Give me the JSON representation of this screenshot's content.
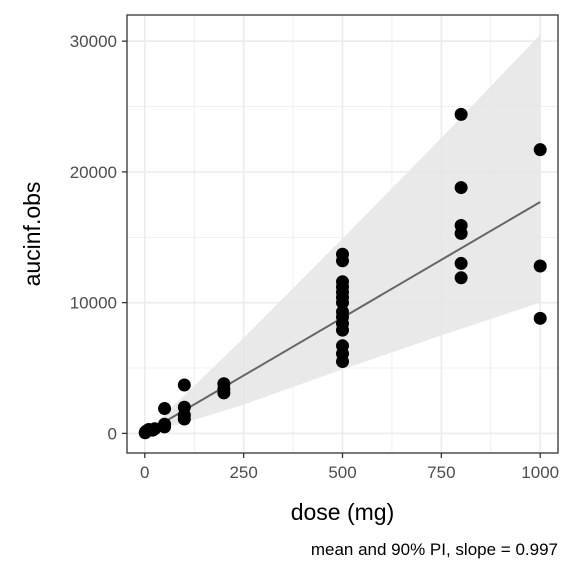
{
  "chart_data": {
    "type": "scatter",
    "xlabel": "dose (mg)",
    "ylabel": "aucinf.obs",
    "caption": "mean and 90% PI, slope = 0.997",
    "xlim": [
      -45,
      1045
    ],
    "ylim": [
      -1500,
      32000
    ],
    "x_ticks": [
      0,
      250,
      500,
      750,
      1000
    ],
    "x_tick_labels": [
      "0",
      "250",
      "500",
      "750",
      "1000"
    ],
    "y_ticks": [
      0,
      10000,
      20000,
      30000
    ],
    "y_tick_labels": [
      "0",
      "10000",
      "20000",
      "30000"
    ],
    "grid": true,
    "points": [
      {
        "x": 1,
        "y": 50
      },
      {
        "x": 2,
        "y": 120
      },
      {
        "x": 5,
        "y": 200
      },
      {
        "x": 10,
        "y": 300
      },
      {
        "x": 20,
        "y": 250
      },
      {
        "x": 25,
        "y": 350
      },
      {
        "x": 50,
        "y": 500
      },
      {
        "x": 50,
        "y": 700
      },
      {
        "x": 50,
        "y": 1900
      },
      {
        "x": 100,
        "y": 1100
      },
      {
        "x": 100,
        "y": 1400
      },
      {
        "x": 100,
        "y": 2000
      },
      {
        "x": 100,
        "y": 3700
      },
      {
        "x": 200,
        "y": 3100
      },
      {
        "x": 200,
        "y": 3400
      },
      {
        "x": 200,
        "y": 3800
      },
      {
        "x": 500,
        "y": 5500
      },
      {
        "x": 500,
        "y": 6100
      },
      {
        "x": 500,
        "y": 6700
      },
      {
        "x": 500,
        "y": 7900
      },
      {
        "x": 500,
        "y": 8400
      },
      {
        "x": 500,
        "y": 8900
      },
      {
        "x": 500,
        "y": 9300
      },
      {
        "x": 500,
        "y": 10000
      },
      {
        "x": 500,
        "y": 10400
      },
      {
        "x": 500,
        "y": 10800
      },
      {
        "x": 500,
        "y": 11200
      },
      {
        "x": 500,
        "y": 11600
      },
      {
        "x": 500,
        "y": 13200
      },
      {
        "x": 500,
        "y": 13700
      },
      {
        "x": 800,
        "y": 11900
      },
      {
        "x": 800,
        "y": 13000
      },
      {
        "x": 800,
        "y": 15300
      },
      {
        "x": 800,
        "y": 15900
      },
      {
        "x": 800,
        "y": 18800
      },
      {
        "x": 800,
        "y": 24400
      },
      {
        "x": 1000,
        "y": 8800
      },
      {
        "x": 1000,
        "y": 12800
      },
      {
        "x": 1000,
        "y": 21700
      }
    ],
    "fit_line": {
      "x": [
        0,
        1000
      ],
      "y": [
        0,
        17700
      ]
    },
    "prediction_interval": {
      "x": [
        0,
        100,
        250,
        500,
        750,
        1000
      ],
      "lower": [
        0,
        800,
        2200,
        4900,
        7500,
        10000
      ],
      "upper": [
        0,
        2900,
        7300,
        14900,
        22600,
        30500
      ]
    },
    "colors": {
      "points": "#000000",
      "fit_line": "#666666",
      "interval_fill": "#e5e5e5",
      "grid": "#ebebeb",
      "panel_border": "#333333"
    }
  }
}
